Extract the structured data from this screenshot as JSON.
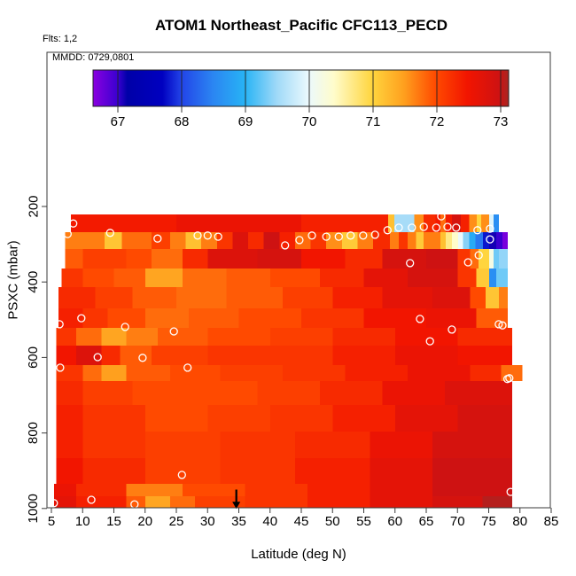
{
  "title": "ATOM1 Northeast_Pacific CFC113_PECD",
  "flights_note": "Flts: 1,2",
  "legend_note": "MMDD: 0729,0801",
  "axes": {
    "x_label": "Latitude (deg N)",
    "y_label": "PSXC (mbar)",
    "x_ticks": [
      5,
      10,
      15,
      20,
      25,
      30,
      35,
      40,
      45,
      50,
      55,
      60,
      65,
      70,
      75,
      80,
      85
    ],
    "y_ticks": [
      200,
      400,
      600,
      800,
      1000
    ]
  },
  "colorbar": {
    "ticks": [
      67,
      68,
      69,
      70,
      71,
      72,
      73
    ],
    "vmin": 66.61,
    "vmax": 73.15,
    "palette": [
      [
        66.61,
        "#8A00E0"
      ],
      [
        67.0,
        "#3A00D0"
      ],
      [
        67.15,
        "#0000A8"
      ],
      [
        67.7,
        "#0000C0"
      ],
      [
        68.0,
        "#2244E8"
      ],
      [
        68.5,
        "#2B86F2"
      ],
      [
        69.0,
        "#27B3F5"
      ],
      [
        69.5,
        "#9FD9F8"
      ],
      [
        70.0,
        "#EBF9FD"
      ],
      [
        70.4,
        "#FFFCCB"
      ],
      [
        71.0,
        "#FFD53E"
      ],
      [
        71.5,
        "#FFA01E"
      ],
      [
        72.0,
        "#FF4A00"
      ],
      [
        72.5,
        "#F21500"
      ],
      [
        73.0,
        "#CE1212"
      ],
      [
        73.15,
        "#A82622"
      ]
    ]
  },
  "chart_data": {
    "type": "heatmap",
    "x_range": [
      4.3,
      85.3
    ],
    "y_range_mbar": [
      1005,
      -210
    ],
    "value_units": "CFC113_PECD",
    "rows": [
      {
        "p": [
          221,
          268
        ],
        "runs": [
          [
            8.1,
            25,
            72.45
          ],
          [
            25,
            45,
            72.6
          ],
          [
            45,
            58.9,
            72.4
          ],
          [
            58.9,
            59.9,
            71.2
          ],
          [
            59.9,
            63.1,
            69.55
          ],
          [
            63.1,
            64.6,
            71.6
          ],
          [
            64.6,
            66.5,
            72.3
          ],
          [
            66.5,
            67.3,
            72.45
          ],
          [
            67.3,
            68.1,
            71.8
          ],
          [
            68.1,
            69.1,
            72.45
          ],
          [
            69.1,
            70.5,
            72.9
          ],
          [
            70.5,
            71.9,
            72.4
          ],
          [
            71.9,
            73.1,
            71.6
          ],
          [
            73.1,
            73.8,
            71.0
          ],
          [
            73.8,
            75.1,
            71.6
          ],
          [
            75.1,
            75.8,
            69.9
          ],
          [
            75.8,
            76.6,
            68.6
          ]
        ]
      },
      {
        "p": [
          268,
          313
        ],
        "runs": [
          [
            7.2,
            13.5,
            71.7
          ],
          [
            13.5,
            16.3,
            71.15
          ],
          [
            16.3,
            21,
            71.8
          ],
          [
            21,
            24,
            72.1
          ],
          [
            24,
            26.5,
            71.7
          ],
          [
            26.5,
            29,
            71.2
          ],
          [
            29,
            31.5,
            71.7
          ],
          [
            31.5,
            34,
            72.2
          ],
          [
            34,
            36.5,
            72.8
          ],
          [
            36.5,
            39,
            72.3
          ],
          [
            39,
            41.5,
            73.0
          ],
          [
            41.5,
            44,
            72.4
          ],
          [
            44,
            46.5,
            71.8
          ],
          [
            46.5,
            49,
            72.2
          ],
          [
            49,
            51.5,
            71.6
          ],
          [
            51.5,
            54,
            71.1
          ],
          [
            54,
            56.5,
            71.7
          ],
          [
            56.5,
            59.2,
            72.3
          ],
          [
            59.2,
            60.6,
            71.7
          ],
          [
            60.6,
            62,
            72.2
          ],
          [
            62,
            63.4,
            71.7
          ],
          [
            63.4,
            64.6,
            71.1
          ],
          [
            64.6,
            67.3,
            71.7
          ],
          [
            67.3,
            68.1,
            71.2
          ],
          [
            68.1,
            69.1,
            70.7
          ],
          [
            69.1,
            70.1,
            70.4
          ],
          [
            70.1,
            70.9,
            70.0
          ],
          [
            70.9,
            71.9,
            69.4
          ],
          [
            71.9,
            72.9,
            68.9
          ],
          [
            72.9,
            74.1,
            68.4
          ],
          [
            74.1,
            75.1,
            67.8
          ],
          [
            75.1,
            76.2,
            67.1
          ],
          [
            76.2,
            77.2,
            67.0
          ],
          [
            77.2,
            78,
            66.7
          ]
        ]
      },
      {
        "p": [
          313,
          364
        ],
        "runs": [
          [
            7.2,
            10,
            71.9
          ],
          [
            10,
            17,
            72.1
          ],
          [
            17,
            21,
            72.0
          ],
          [
            21,
            26,
            71.8
          ],
          [
            26,
            30,
            72.3
          ],
          [
            30,
            38,
            72.8
          ],
          [
            38,
            45,
            72.9
          ],
          [
            45,
            52,
            72.5
          ],
          [
            52,
            58,
            72.3
          ],
          [
            58,
            65,
            72.9
          ],
          [
            65,
            70,
            73.0
          ],
          [
            70,
            72,
            72.2
          ],
          [
            72,
            73.4,
            71.8
          ],
          [
            73.4,
            75.1,
            71.0
          ],
          [
            75.1,
            75.8,
            70.2
          ],
          [
            75.8,
            76.6,
            69.3
          ],
          [
            76.6,
            78,
            69.45
          ]
        ]
      },
      {
        "p": [
          364,
          414
        ],
        "runs": [
          [
            6.6,
            10,
            72.2
          ],
          [
            10,
            15,
            72.0
          ],
          [
            15,
            20,
            71.9
          ],
          [
            20,
            26,
            71.45
          ],
          [
            26,
            33,
            71.8
          ],
          [
            33,
            40,
            71.9
          ],
          [
            40,
            48,
            72.0
          ],
          [
            48,
            55,
            72.3
          ],
          [
            55,
            62,
            72.7
          ],
          [
            62,
            70,
            72.9
          ],
          [
            70,
            73,
            72.2
          ],
          [
            73,
            75.1,
            71.1
          ],
          [
            75.1,
            76.2,
            68.6
          ],
          [
            76.2,
            78,
            69.3
          ]
        ]
      },
      {
        "p": [
          414,
          470
        ],
        "runs": [
          [
            6.1,
            12,
            72.3
          ],
          [
            12,
            18,
            72.1
          ],
          [
            18,
            25,
            71.9
          ],
          [
            25,
            33,
            71.8
          ],
          [
            33,
            42,
            71.9
          ],
          [
            42,
            50,
            72.1
          ],
          [
            50,
            58,
            72.4
          ],
          [
            58,
            66,
            72.7
          ],
          [
            66,
            72,
            72.8
          ],
          [
            72,
            74.5,
            72.0
          ],
          [
            74.5,
            76.6,
            71.15
          ],
          [
            76.6,
            78,
            71.7
          ]
        ]
      },
      {
        "p": [
          470,
          522
        ],
        "runs": [
          [
            6.1,
            10,
            72.4
          ],
          [
            10,
            14,
            72.2
          ],
          [
            14,
            20,
            72.0
          ],
          [
            20,
            27,
            71.8
          ],
          [
            27,
            35,
            71.9
          ],
          [
            35,
            45,
            72.0
          ],
          [
            45,
            55,
            72.2
          ],
          [
            55,
            65,
            72.5
          ],
          [
            65,
            73,
            72.6
          ],
          [
            73,
            78,
            71.9
          ]
        ]
      },
      {
        "p": [
          522,
          569
        ],
        "runs": [
          [
            5.8,
            9,
            72.2
          ],
          [
            9,
            13,
            71.8
          ],
          [
            13,
            17,
            71.45
          ],
          [
            17,
            22,
            71.7
          ],
          [
            22,
            30,
            71.9
          ],
          [
            30,
            40,
            72.0
          ],
          [
            40,
            50,
            72.1
          ],
          [
            50,
            60,
            72.3
          ],
          [
            60,
            70,
            72.5
          ],
          [
            70,
            78.7,
            72.3
          ]
        ]
      },
      {
        "p": [
          569,
          620
        ],
        "runs": [
          [
            5.8,
            9,
            72.5
          ],
          [
            9,
            13,
            72.8
          ],
          [
            13,
            16,
            72.3
          ],
          [
            16,
            21,
            71.9
          ],
          [
            21,
            30,
            72.1
          ],
          [
            30,
            40,
            72.2
          ],
          [
            40,
            50,
            72.2
          ],
          [
            50,
            60,
            72.4
          ],
          [
            60,
            70,
            72.6
          ],
          [
            70,
            78.7,
            72.5
          ]
        ]
      },
      {
        "p": [
          620,
          662
        ],
        "runs": [
          [
            5.8,
            10,
            72.2
          ],
          [
            10,
            13,
            71.8
          ],
          [
            13,
            17,
            71.5
          ],
          [
            17,
            24,
            71.9
          ],
          [
            24,
            32,
            72.0
          ],
          [
            32,
            42,
            72.1
          ],
          [
            42,
            52,
            72.2
          ],
          [
            52,
            62,
            72.4
          ],
          [
            62,
            72,
            72.6
          ],
          [
            72,
            77,
            72.3
          ],
          [
            77,
            80.3,
            71.8
          ]
        ]
      },
      {
        "p": [
          662,
          726
        ],
        "runs": [
          [
            5.8,
            10,
            72.3
          ],
          [
            10,
            18,
            72.1
          ],
          [
            18,
            28,
            72.0
          ],
          [
            28,
            38,
            72.0
          ],
          [
            38,
            48,
            72.1
          ],
          [
            48,
            58,
            72.3
          ],
          [
            58,
            68,
            72.6
          ],
          [
            68,
            78.7,
            72.8
          ]
        ]
      },
      {
        "p": [
          726,
          796
        ],
        "runs": [
          [
            5.8,
            10,
            72.4
          ],
          [
            10,
            20,
            72.2
          ],
          [
            20,
            30,
            72.0
          ],
          [
            30,
            40,
            72.1
          ],
          [
            40,
            50,
            72.2
          ],
          [
            50,
            60,
            72.4
          ],
          [
            60,
            70,
            72.7
          ],
          [
            70,
            78.7,
            72.9
          ]
        ]
      },
      {
        "p": [
          796,
          867
        ],
        "runs": [
          [
            5.8,
            10,
            72.4
          ],
          [
            10,
            20,
            72.2
          ],
          [
            20,
            32,
            72.1
          ],
          [
            32,
            44,
            72.2
          ],
          [
            44,
            56,
            72.3
          ],
          [
            56,
            66,
            72.6
          ],
          [
            66,
            78.7,
            72.9
          ]
        ]
      },
      {
        "p": [
          867,
          935
        ],
        "runs": [
          [
            5.8,
            10,
            72.5
          ],
          [
            10,
            20,
            72.3
          ],
          [
            20,
            32,
            72.1
          ],
          [
            32,
            44,
            72.2
          ],
          [
            44,
            56,
            72.4
          ],
          [
            56,
            66,
            72.7
          ],
          [
            66,
            78.7,
            73.0
          ]
        ]
      },
      {
        "p": [
          935,
          968
        ],
        "runs": [
          [
            5.4,
            9,
            72.6
          ],
          [
            9,
            17,
            72.3
          ],
          [
            17,
            26,
            71.7
          ],
          [
            26,
            36,
            72.0
          ],
          [
            36,
            46,
            72.2
          ],
          [
            46,
            56,
            72.4
          ],
          [
            56,
            66,
            72.7
          ],
          [
            66,
            78.7,
            73.0
          ]
        ]
      },
      {
        "p": [
          968,
          1001
        ],
        "runs": [
          [
            5.4,
            9,
            72.7
          ],
          [
            9,
            17,
            72.4
          ],
          [
            17,
            20,
            71.9
          ],
          [
            20,
            24,
            71.45
          ],
          [
            24,
            28,
            71.8
          ],
          [
            28,
            36,
            72.1
          ],
          [
            36,
            46,
            72.2
          ],
          [
            46,
            56,
            72.4
          ],
          [
            56,
            66,
            72.7
          ],
          [
            66,
            74,
            72.9
          ],
          [
            74,
            78.7,
            73.1
          ]
        ]
      }
    ],
    "track_points_lat_mbar": [
      [
        8.5,
        245
      ],
      [
        7.6,
        273
      ],
      [
        14.4,
        270
      ],
      [
        22,
        285
      ],
      [
        28.4,
        277
      ],
      [
        30,
        277
      ],
      [
        31.7,
        280
      ],
      [
        42.4,
        303
      ],
      [
        44.7,
        289
      ],
      [
        46.7,
        277
      ],
      [
        49,
        280
      ],
      [
        51,
        280
      ],
      [
        52.9,
        277
      ],
      [
        54.9,
        277
      ],
      [
        56.8,
        275
      ],
      [
        58.8,
        263
      ],
      [
        60.6,
        256
      ],
      [
        62.7,
        256
      ],
      [
        64.6,
        254
      ],
      [
        67.4,
        226
      ],
      [
        66.6,
        256
      ],
      [
        68.4,
        254
      ],
      [
        69.8,
        256
      ],
      [
        73.2,
        263
      ],
      [
        75.2,
        259
      ],
      [
        75.2,
        287
      ],
      [
        73.4,
        329
      ],
      [
        71.7,
        348
      ],
      [
        62.4,
        350
      ],
      [
        76.6,
        512
      ],
      [
        77.2,
        515
      ],
      [
        64,
        498
      ],
      [
        69.1,
        526
      ],
      [
        65.6,
        557
      ],
      [
        78.3,
        655
      ],
      [
        78,
        657
      ],
      [
        78.5,
        956
      ],
      [
        6.3,
        512
      ],
      [
        9.8,
        496
      ],
      [
        16.8,
        519
      ],
      [
        24.6,
        531
      ],
      [
        12.4,
        599
      ],
      [
        19.6,
        601
      ],
      [
        6.4,
        627
      ],
      [
        26.8,
        627
      ],
      [
        25.9,
        911
      ],
      [
        5.4,
        986
      ],
      [
        11.4,
        977
      ],
      [
        18.3,
        989
      ]
    ],
    "arrow_marker": {
      "lat": 34.6,
      "p_top": 950,
      "p_bottom": 1001
    }
  }
}
